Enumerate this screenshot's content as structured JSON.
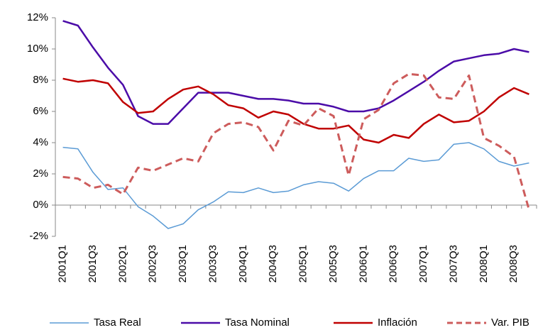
{
  "chart_data": {
    "type": "line",
    "categories": [
      "2001Q1",
      null,
      "2001Q3",
      null,
      "2002Q1",
      null,
      "2002Q3",
      null,
      "2003Q1",
      null,
      "2003Q3",
      null,
      "2004Q1",
      null,
      "2004Q3",
      null,
      "2005Q1",
      null,
      "2005Q3",
      null,
      "2006Q1",
      null,
      "2006Q3",
      null,
      "2007Q1",
      null,
      "2007Q3",
      null,
      "2008Q1",
      null,
      "2008Q3",
      null
    ],
    "series": [
      {
        "name": "Tasa Real",
        "color": "#5b9bd5",
        "width": 1.5,
        "dashed": false,
        "values": [
          3.7,
          3.6,
          2.1,
          1.0,
          1.1,
          -0.1,
          -0.7,
          -1.5,
          -1.2,
          -0.3,
          0.2,
          0.85,
          0.8,
          1.1,
          0.8,
          0.9,
          1.3,
          1.5,
          1.4,
          0.9,
          1.7,
          2.2,
          2.2,
          3.0,
          2.8,
          2.9,
          3.9,
          4.0,
          3.6,
          2.8,
          2.5,
          2.7
        ]
      },
      {
        "name": "Tasa Nominal",
        "color": "#4b0ca8",
        "width": 2.5,
        "dashed": false,
        "values": [
          11.8,
          11.5,
          10.1,
          8.8,
          7.7,
          5.7,
          5.2,
          5.2,
          6.2,
          7.2,
          7.2,
          7.2,
          7.0,
          6.8,
          6.8,
          6.7,
          6.5,
          6.5,
          6.3,
          6.0,
          6.0,
          6.2,
          6.7,
          7.3,
          7.9,
          8.6,
          9.2,
          9.4,
          9.6,
          9.7,
          10.0,
          9.8
        ]
      },
      {
        "name": "Inflación",
        "color": "#c00000",
        "width": 2.5,
        "dashed": false,
        "values": [
          8.1,
          7.9,
          8.0,
          7.8,
          6.6,
          5.9,
          6.0,
          6.8,
          7.4,
          7.6,
          7.1,
          6.4,
          6.2,
          5.6,
          6.0,
          5.8,
          5.2,
          4.9,
          4.9,
          5.1,
          4.2,
          4.0,
          4.5,
          4.3,
          5.2,
          5.8,
          5.3,
          5.4,
          6.0,
          6.9,
          7.5,
          7.1
        ]
      },
      {
        "name": "Var. PIB",
        "color": "#cd5c5c",
        "width": 3,
        "dashed": true,
        "values": [
          1.8,
          1.7,
          1.1,
          1.3,
          0.7,
          2.4,
          2.2,
          2.6,
          3.0,
          2.8,
          4.6,
          5.2,
          5.3,
          5.0,
          3.5,
          5.4,
          5.1,
          6.2,
          5.7,
          1.9,
          5.5,
          6.1,
          7.8,
          8.4,
          8.3,
          6.9,
          6.8,
          8.3,
          4.3,
          3.8,
          3.1,
          -0.3
        ]
      }
    ],
    "ylim": [
      -2,
      12
    ],
    "yticks": [
      {
        "value": -2,
        "label": "-2%"
      },
      {
        "value": 0,
        "label": "0%"
      },
      {
        "value": 2,
        "label": "2%"
      },
      {
        "value": 4,
        "label": "4%"
      },
      {
        "value": 6,
        "label": "6%"
      },
      {
        "value": 8,
        "label": "8%"
      },
      {
        "value": 10,
        "label": "10%"
      },
      {
        "value": 12,
        "label": "12%"
      }
    ],
    "legend": "bottom"
  }
}
